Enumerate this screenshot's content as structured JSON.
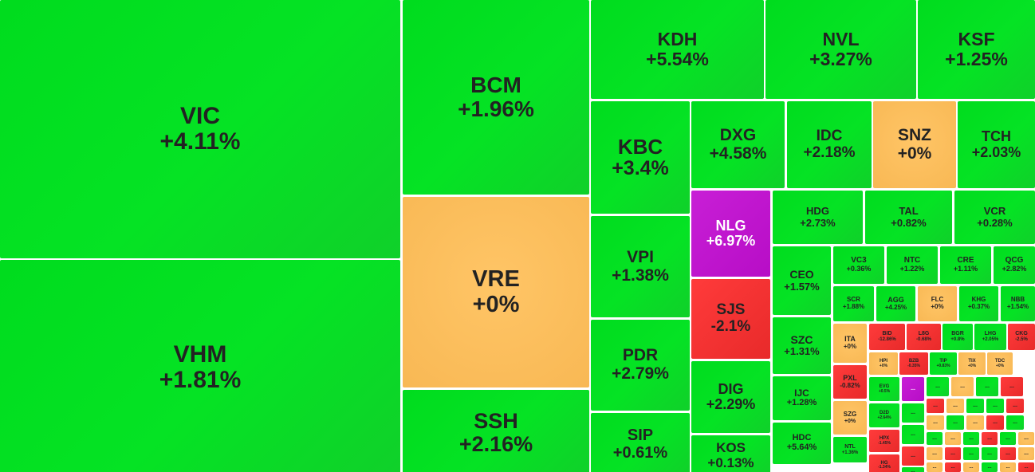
{
  "colors": {
    "up": "#00dc1e",
    "reference": "#f8b854",
    "down": "#ee2f2f",
    "ceiling": "#c01bd0",
    "text": "#222222",
    "ceiling_text": "#ffffff",
    "gap": "#ffffff"
  },
  "tiles": [
    {
      "sym": "VIC",
      "chg": "+4.11%",
      "trend": "up"
    },
    {
      "sym": "VHM",
      "chg": "+1.81%",
      "trend": "up"
    },
    {
      "sym": "BCM",
      "chg": "+1.96%",
      "trend": "up"
    },
    {
      "sym": "VRE",
      "chg": "+0%",
      "trend": "ref"
    },
    {
      "sym": "SSH",
      "chg": "+2.16%",
      "trend": "up"
    },
    {
      "sym": "KDH",
      "chg": "+5.54%",
      "trend": "up"
    },
    {
      "sym": "NVL",
      "chg": "+3.27%",
      "trend": "up"
    },
    {
      "sym": "KSF",
      "chg": "+1.25%",
      "trend": "up"
    },
    {
      "sym": "KBC",
      "chg": "+3.4%",
      "trend": "up"
    },
    {
      "sym": "VPI",
      "chg": "+1.38%",
      "trend": "up"
    },
    {
      "sym": "PDR",
      "chg": "+2.79%",
      "trend": "up"
    },
    {
      "sym": "SIP",
      "chg": "+0.61%",
      "trend": "up"
    },
    {
      "sym": "DXG",
      "chg": "+4.58%",
      "trend": "up"
    },
    {
      "sym": "IDC",
      "chg": "+2.18%",
      "trend": "up"
    },
    {
      "sym": "SNZ",
      "chg": "+0%",
      "trend": "ref"
    },
    {
      "sym": "TCH",
      "chg": "+2.03%",
      "trend": "up"
    },
    {
      "sym": "NLG",
      "chg": "+6.97%",
      "trend": "ceil"
    },
    {
      "sym": "SJS",
      "chg": "-2.1%",
      "trend": "down"
    },
    {
      "sym": "DIG",
      "chg": "+2.29%",
      "trend": "up"
    },
    {
      "sym": "KOS",
      "chg": "+0.13%",
      "trend": "up"
    },
    {
      "sym": "HDG",
      "chg": "+2.73%",
      "trend": "up"
    },
    {
      "sym": "TAL",
      "chg": "+0.82%",
      "trend": "up"
    },
    {
      "sym": "VCR",
      "chg": "+0.28%",
      "trend": "up"
    },
    {
      "sym": "CEO",
      "chg": "+1.57%",
      "trend": "up"
    },
    {
      "sym": "SZC",
      "chg": "+1.31%",
      "trend": "up"
    },
    {
      "sym": "IJC",
      "chg": "+1.28%",
      "trend": "up"
    },
    {
      "sym": "HDC",
      "chg": "+5.64%",
      "trend": "up"
    },
    {
      "sym": "VC3",
      "chg": "+0.36%",
      "trend": "up"
    },
    {
      "sym": "NTC",
      "chg": "+1.22%",
      "trend": "up"
    },
    {
      "sym": "CRE",
      "chg": "+1.11%",
      "trend": "up"
    },
    {
      "sym": "QCG",
      "chg": "+2.82%",
      "trend": "up"
    },
    {
      "sym": "SCR",
      "chg": "+1.88%",
      "trend": "up"
    },
    {
      "sym": "AGG",
      "chg": "+4.25%",
      "trend": "up"
    },
    {
      "sym": "FLC",
      "chg": "+0%",
      "trend": "ref"
    },
    {
      "sym": "KHG",
      "chg": "+0.37%",
      "trend": "up"
    },
    {
      "sym": "NBB",
      "chg": "+1.54%",
      "trend": "up"
    },
    {
      "sym": "ITA",
      "chg": "+0%",
      "trend": "ref"
    },
    {
      "sym": "BID",
      "chg": "-12.86%",
      "trend": "down"
    },
    {
      "sym": "L8G",
      "chg": "-0.68%",
      "trend": "down"
    },
    {
      "sym": "BGR",
      "chg": "+0.8%",
      "trend": "up"
    },
    {
      "sym": "LHG",
      "chg": "+2.05%",
      "trend": "up"
    },
    {
      "sym": "CKG",
      "chg": "-2.5%",
      "trend": "down"
    },
    {
      "sym": "PXL",
      "chg": "-0.82%",
      "trend": "down"
    },
    {
      "sym": "HPI",
      "chg": "+0%",
      "trend": "ref"
    },
    {
      "sym": "BZB",
      "chg": "-0.35%",
      "trend": "down"
    },
    {
      "sym": "TIP",
      "chg": "+0.83%",
      "trend": "up"
    },
    {
      "sym": "TIX",
      "chg": "+0%",
      "trend": "ref"
    },
    {
      "sym": "TDC",
      "chg": "+0%",
      "trend": "ref"
    },
    {
      "sym": "EVG",
      "chg": "+0.5%",
      "trend": "up"
    },
    {
      "sym": "SZG",
      "chg": "+0%",
      "trend": "ref"
    },
    {
      "sym": "D2D",
      "chg": "+2.64%",
      "trend": "up"
    },
    {
      "sym": "NTL",
      "chg": "+1.36%",
      "trend": "up"
    },
    {
      "sym": "HPX",
      "chg": "-1.45%",
      "trend": "down"
    },
    {
      "sym": "HG",
      "chg": "-1.34%",
      "trend": "down"
    },
    {
      "sym": "...",
      "chg": "",
      "trend": "ceil"
    },
    {
      "sym": "...",
      "chg": "",
      "trend": "up"
    },
    {
      "sym": "...",
      "chg": "",
      "trend": "ref"
    },
    {
      "sym": "...",
      "chg": "",
      "trend": "up"
    },
    {
      "sym": "...",
      "chg": "",
      "trend": "down"
    },
    {
      "sym": "...",
      "chg": "",
      "trend": "up"
    },
    {
      "sym": "...",
      "chg": "",
      "trend": "down"
    },
    {
      "sym": "...",
      "chg": "",
      "trend": "ref"
    },
    {
      "sym": "...",
      "chg": "",
      "trend": "up"
    },
    {
      "sym": "...",
      "chg": "",
      "trend": "up"
    },
    {
      "sym": "...",
      "chg": "",
      "trend": "down"
    },
    {
      "sym": "...",
      "chg": "",
      "trend": "up"
    },
    {
      "sym": "...",
      "chg": "",
      "trend": "ref"
    },
    {
      "sym": "...",
      "chg": "",
      "trend": "up"
    },
    {
      "sym": "...",
      "chg": "",
      "trend": "ref"
    },
    {
      "sym": "...",
      "chg": "",
      "trend": "down"
    },
    {
      "sym": "...",
      "chg": "",
      "trend": "up"
    },
    {
      "sym": "...",
      "chg": "",
      "trend": "down"
    },
    {
      "sym": "...",
      "chg": "",
      "trend": "up"
    },
    {
      "sym": "...",
      "chg": "",
      "trend": "ref"
    },
    {
      "sym": "...",
      "chg": "",
      "trend": "up"
    },
    {
      "sym": "...",
      "chg": "",
      "trend": "down"
    },
    {
      "sym": "...",
      "chg": "",
      "trend": "up"
    },
    {
      "sym": "...",
      "chg": "",
      "trend": "ref"
    },
    {
      "sym": "...",
      "chg": "",
      "trend": "ref"
    },
    {
      "sym": "...",
      "chg": "",
      "trend": "down"
    },
    {
      "sym": "...",
      "chg": "",
      "trend": "up"
    },
    {
      "sym": "...",
      "chg": "",
      "trend": "up"
    },
    {
      "sym": "...",
      "chg": "",
      "trend": "down"
    },
    {
      "sym": "...",
      "chg": "",
      "trend": "ref"
    },
    {
      "sym": "...",
      "chg": "",
      "trend": "up"
    },
    {
      "sym": "...",
      "chg": "",
      "trend": "ref"
    },
    {
      "sym": "...",
      "chg": "",
      "trend": "down"
    },
    {
      "sym": "...",
      "chg": "",
      "trend": "ref"
    },
    {
      "sym": "...",
      "chg": "",
      "trend": "up"
    },
    {
      "sym": "...",
      "chg": "",
      "trend": "ref"
    },
    {
      "sym": "...",
      "chg": "",
      "trend": "down"
    },
    {
      "sym": "...",
      "chg": "",
      "trend": "up"
    },
    {
      "sym": "...",
      "chg": "",
      "trend": "ref"
    },
    {
      "sym": "...",
      "chg": "",
      "trend": "down"
    },
    {
      "sym": "...",
      "chg": "",
      "trend": "up"
    },
    {
      "sym": "...",
      "chg": "",
      "trend": "ref"
    },
    {
      "sym": "...",
      "chg": "",
      "trend": "up"
    }
  ]
}
